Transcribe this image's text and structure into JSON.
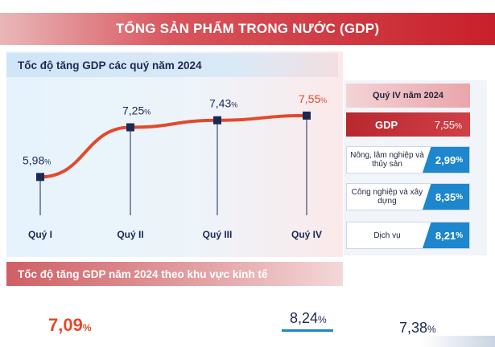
{
  "banner": {
    "title": "TỔNG SẢN PHẨM TRONG NƯỚC (GDP)"
  },
  "chart_data": {
    "type": "line",
    "title": "Tốc độ tăng GDP các quý năm 2024",
    "categories": [
      "Quý I",
      "Quý II",
      "Quý III",
      "Quý IV"
    ],
    "values": [
      5.98,
      7.25,
      7.43,
      7.55
    ],
    "unit": "%",
    "value_labels": [
      "5,98",
      "7,25",
      "7,43",
      "7,55"
    ],
    "ylim": [
      5.0,
      8.0
    ],
    "highlight_index": 3,
    "colors": {
      "line": "#e24a2c",
      "marker": "#1b2a55",
      "label": "#1b2a55",
      "highlight_label": "#e24a2c",
      "drop_line": "#1b2a55"
    }
  },
  "right_panel": {
    "header": "Quý IV năm 2024",
    "gdp_label": "GDP",
    "gdp_value": "7,55",
    "unit": "%",
    "sectors": [
      {
        "name": "Nông, lâm nghiệp và thủy sản",
        "value": "2,99"
      },
      {
        "name": "Công nghiệp và xây dựng",
        "value": "8,35"
      },
      {
        "name": "Dịch vụ",
        "value": "8,21"
      }
    ]
  },
  "bottom": {
    "title": "Tốc độ tăng GDP năm 2024 theo khu vực kinh tế",
    "values": [
      "7,09",
      "8,24",
      "7,38"
    ],
    "unit": "%"
  }
}
